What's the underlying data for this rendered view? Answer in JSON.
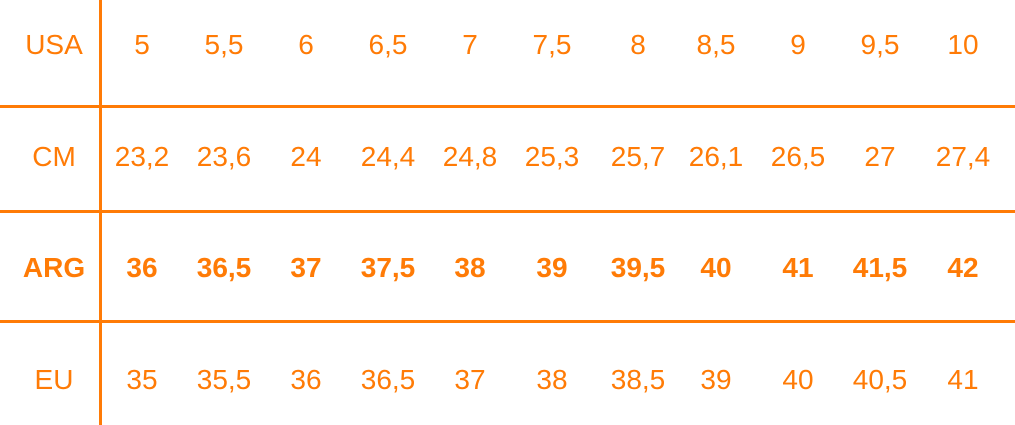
{
  "accent_color": "#ff7b06",
  "rows": [
    {
      "label": "USA",
      "bold": false,
      "values": [
        "5",
        "5,5",
        "6",
        "6,5",
        "7",
        "7,5",
        "8",
        "8,5",
        "9",
        "9,5",
        "10"
      ]
    },
    {
      "label": "CM",
      "bold": false,
      "values": [
        "23,2",
        "23,6",
        "24",
        "24,4",
        "24,8",
        "25,3",
        "25,7",
        "26,1",
        "26,5",
        "27",
        "27,4"
      ]
    },
    {
      "label": "ARG",
      "bold": true,
      "values": [
        "36",
        "36,5",
        "37",
        "37,5",
        "38",
        "39",
        "39,5",
        "40",
        "41",
        "41,5",
        "42"
      ]
    },
    {
      "label": "EU",
      "bold": false,
      "values": [
        "35",
        "35,5",
        "36",
        "36,5",
        "37",
        "38",
        "38,5",
        "39",
        "40",
        "40,5",
        "41"
      ]
    }
  ]
}
